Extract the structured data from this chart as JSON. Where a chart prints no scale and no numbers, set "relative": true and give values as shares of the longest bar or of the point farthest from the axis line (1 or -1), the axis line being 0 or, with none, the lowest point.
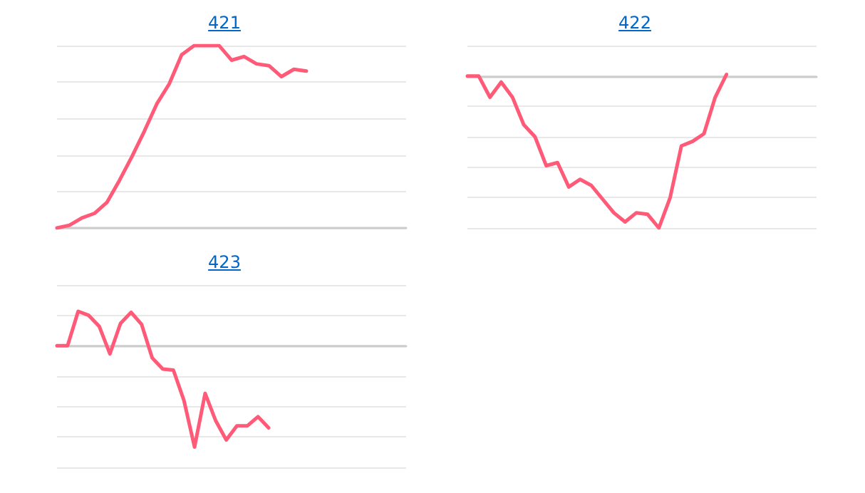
{
  "chart_data": [
    {
      "type": "line",
      "title": "421",
      "relative": true,
      "grid": "y",
      "line_style": "solid",
      "categories": [
        null,
        null,
        null,
        null,
        null,
        null,
        null,
        null,
        null,
        null,
        null,
        null,
        null,
        null,
        null,
        null,
        null,
        null,
        null,
        null,
        null,
        null,
        null,
        null,
        null,
        null,
        null,
        null,
        null
      ],
      "series": [
        {
          "color": "#ff5a78",
          "values": [
            0,
            0.015,
            0.055,
            0.08,
            0.14,
            0.26,
            0.39,
            0.53,
            0.68,
            0.79,
            0.95,
            1,
            1,
            1,
            0.92,
            0.94,
            0.9,
            0.89,
            0.83,
            0.87,
            0.86,
            null,
            null,
            null,
            null,
            null,
            null,
            null,
            null
          ]
        }
      ]
    },
    {
      "type": "line",
      "title": "422",
      "relative": true,
      "grid": "y",
      "line_style": "solid",
      "categories": [
        null,
        null,
        null,
        null,
        null,
        null,
        null,
        null,
        null,
        null,
        null,
        null,
        null,
        null,
        null,
        null,
        null,
        null,
        null,
        null,
        null,
        null,
        null,
        null,
        null,
        null,
        null,
        null,
        null,
        null,
        null,
        null
      ],
      "series": [
        {
          "color": "#ff5a78",
          "values": [
            0,
            0,
            -0.14,
            -0.04,
            -0.14,
            -0.32,
            -0.4,
            -0.59,
            -0.57,
            -0.73,
            -0.68,
            -0.72,
            -0.81,
            -0.9,
            -0.96,
            -0.9,
            -0.91,
            -1,
            -0.8,
            -0.46,
            -0.43,
            -0.38,
            -0.14,
            0.01,
            null,
            null,
            null,
            null,
            null,
            null,
            null,
            null
          ]
        }
      ]
    },
    {
      "type": "line",
      "title": "423",
      "relative": true,
      "grid": "y",
      "line_style": "solid",
      "categories": [
        null,
        null,
        null,
        null,
        null,
        null,
        null,
        null,
        null,
        null,
        null,
        null,
        null,
        null,
        null,
        null,
        null,
        null,
        null,
        null,
        null,
        null,
        null,
        null,
        null,
        null,
        null,
        null,
        null,
        null,
        null,
        null,
        null,
        null
      ],
      "series": [
        {
          "color": "#ff5a78",
          "values": [
            0,
            0,
            0.34,
            0.3,
            0.19,
            -0.08,
            0.22,
            0.33,
            0.21,
            -0.12,
            -0.23,
            -0.24,
            -0.54,
            -1,
            -0.47,
            -0.74,
            -0.93,
            -0.79,
            -0.79,
            -0.7,
            -0.81,
            null,
            null,
            null,
            null,
            null,
            null,
            null,
            null,
            null,
            null,
            null,
            null,
            null
          ]
        }
      ]
    }
  ]
}
